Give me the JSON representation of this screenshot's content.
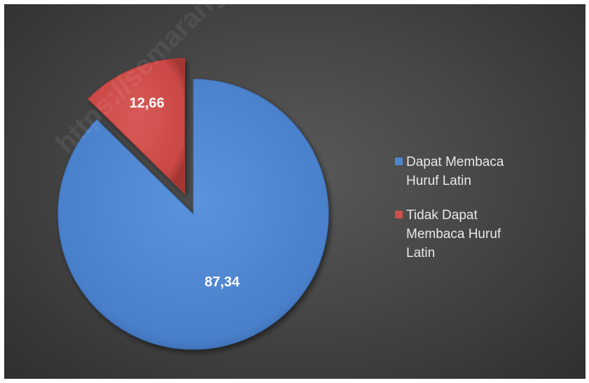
{
  "chart_data": {
    "type": "pie",
    "title": "",
    "categories": [
      "Dapat Membaca Huruf Latin",
      "Tidak Dapat Membaca Huruf Latin"
    ],
    "values": [
      87.34,
      12.66
    ],
    "data_labels": [
      "87,34",
      "12,66"
    ],
    "exploded": [
      false,
      true
    ],
    "start_angle_deg": 0,
    "direction": "clockwise",
    "legend_position": "right",
    "colors": [
      "#4f86d0",
      "#cf4f4c"
    ]
  },
  "watermark": "https://semarang"
}
